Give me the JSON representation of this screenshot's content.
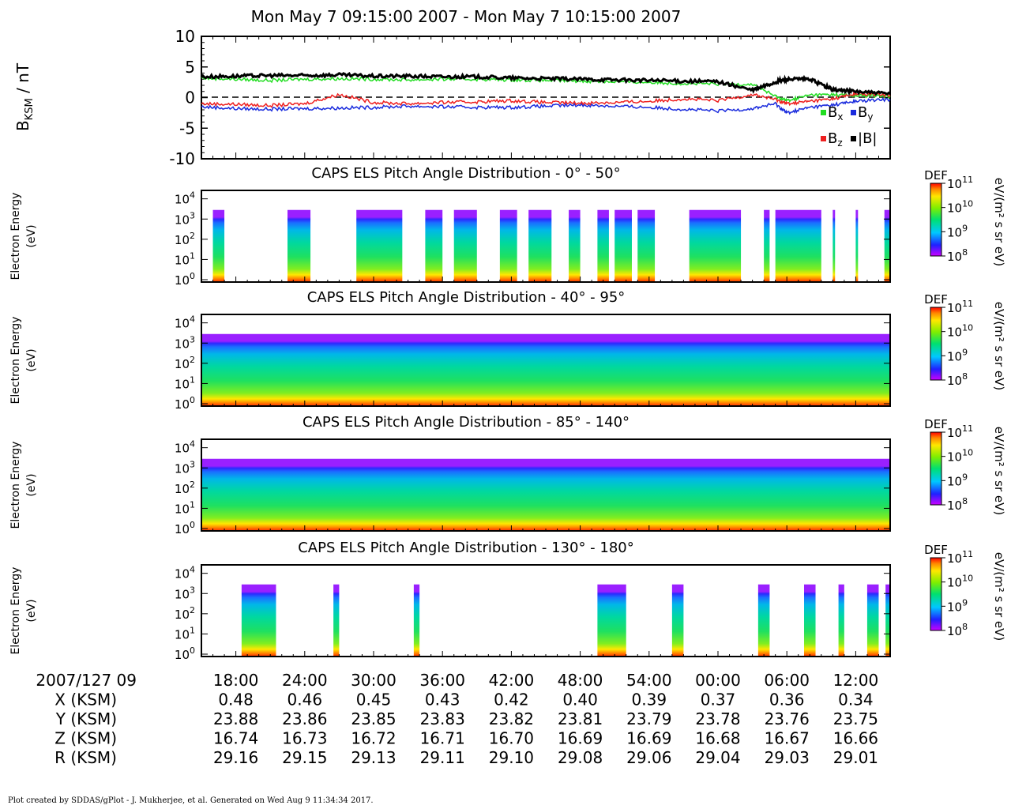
{
  "title": "Mon May 7 09:15:00 2007 - Mon May 7 10:15:00 2007",
  "colors": {
    "bx": "#22dd22",
    "by": "#1a2bdd",
    "bz": "#ee2020",
    "btot": "#000000"
  },
  "mag_panel": {
    "ylabel_main": "B",
    "ylabel_sub": "KSM",
    "ylabel_unit": " / nT",
    "ylim": [
      -10,
      10
    ],
    "yticks": [
      "10",
      "5",
      "0",
      "-5",
      "-10"
    ],
    "zero_line": "dashed"
  },
  "legend": [
    {
      "key": "bx",
      "main": "B",
      "sub": "x"
    },
    {
      "key": "by",
      "main": "B",
      "sub": "y"
    },
    {
      "key": "bz",
      "main": "B",
      "sub": "z"
    },
    {
      "key": "btot",
      "main": "|B|",
      "sub": ""
    }
  ],
  "spectrogram_common": {
    "ylabel_line1": "Electron Energy",
    "ylabel_line2": "(eV)",
    "yticks": [
      {
        "base": "10",
        "exp": "4"
      },
      {
        "base": "10",
        "exp": "3"
      },
      {
        "base": "10",
        "exp": "2"
      },
      {
        "base": "10",
        "exp": "1"
      },
      {
        "base": "10",
        "exp": "0"
      }
    ],
    "colorbar_label": "DEF",
    "colorbar_ticks": [
      {
        "base": "10",
        "exp": "11"
      },
      {
        "base": "10",
        "exp": "10"
      },
      {
        "base": "10",
        "exp": "9"
      },
      {
        "base": "10",
        "exp": "8"
      }
    ],
    "colorbar_unit": "eV/(m² s sr eV)"
  },
  "spectrograms": [
    {
      "title": "CAPS ELS Pitch Angle Distribution - 0° - 50°"
    },
    {
      "title": "CAPS ELS Pitch Angle Distribution - 40° - 95°"
    },
    {
      "title": "CAPS ELS Pitch Angle Distribution - 85° - 140°"
    },
    {
      "title": "CAPS ELS Pitch Angle Distribution - 130° - 180°"
    }
  ],
  "ephemeris": {
    "rows": [
      {
        "label": "2007/127 09",
        "values": [
          "18:00",
          "24:00",
          "30:00",
          "36:00",
          "42:00",
          "48:00",
          "54:00",
          "00:00",
          "06:00",
          "12:00"
        ]
      },
      {
        "label": "X (KSM)",
        "values": [
          "0.48",
          "0.46",
          "0.45",
          "0.43",
          "0.42",
          "0.40",
          "0.39",
          "0.37",
          "0.36",
          "0.34"
        ]
      },
      {
        "label": "Y (KSM)",
        "values": [
          "23.88",
          "23.86",
          "23.85",
          "23.83",
          "23.82",
          "23.81",
          "23.79",
          "23.78",
          "23.76",
          "23.75"
        ]
      },
      {
        "label": "Z (KSM)",
        "values": [
          "16.74",
          "16.73",
          "16.72",
          "16.71",
          "16.70",
          "16.69",
          "16.69",
          "16.68",
          "16.67",
          "16.66"
        ]
      },
      {
        "label": "R (KSM)",
        "values": [
          "29.16",
          "29.15",
          "29.13",
          "29.11",
          "29.10",
          "29.08",
          "29.06",
          "29.04",
          "29.03",
          "29.01"
        ]
      }
    ]
  },
  "footer": "Plot created by SDDAS/gPlot - J. Mukherjee, et al.  Generated on Wed Aug 9 11:34:34 2017.",
  "chart_data": [
    {
      "type": "line",
      "x_unit": "minutes after 09:15 (2007/127)",
      "xlim": [
        0,
        60
      ],
      "ylim": [
        -10,
        10
      ],
      "series": [
        {
          "name": "Bx",
          "x": [
            0,
            3,
            6,
            9,
            12,
            15,
            18,
            21,
            24,
            27,
            30,
            33,
            36,
            39,
            42,
            45,
            48,
            50,
            51,
            53,
            55,
            57,
            60
          ],
          "y": [
            3.2,
            3.0,
            2.8,
            3.0,
            3.1,
            3.0,
            2.9,
            3.0,
            3.0,
            2.9,
            2.8,
            2.7,
            2.6,
            2.5,
            2.3,
            2.2,
            2.2,
            0.2,
            -0.5,
            0.4,
            0.5,
            0.3,
            0.2
          ]
        },
        {
          "name": "By",
          "x": [
            0,
            3,
            6,
            9,
            12,
            15,
            18,
            21,
            24,
            27,
            30,
            33,
            36,
            39,
            42,
            45,
            48,
            50,
            51,
            53,
            55,
            57,
            60
          ],
          "y": [
            -1.5,
            -1.8,
            -1.9,
            -1.8,
            -1.7,
            -1.6,
            -1.4,
            -1.5,
            -1.6,
            -1.6,
            -1.4,
            -1.2,
            -1.4,
            -1.6,
            -1.9,
            -2.2,
            -1.8,
            -1.0,
            -2.5,
            -1.6,
            -1.2,
            -0.6,
            -0.3
          ]
        },
        {
          "name": "Bz",
          "x": [
            0,
            3,
            6,
            9,
            12,
            15,
            18,
            21,
            24,
            27,
            30,
            33,
            36,
            39,
            42,
            45,
            48,
            50,
            51,
            53,
            55,
            57,
            60
          ],
          "y": [
            -1.0,
            -1.1,
            -1.3,
            -1.0,
            0.5,
            -0.8,
            -1.0,
            -0.8,
            -0.7,
            -0.5,
            -0.8,
            -0.9,
            -0.8,
            -0.6,
            -0.2,
            -0.5,
            0.5,
            -0.3,
            -1.0,
            -0.6,
            -0.2,
            0.6,
            0.4
          ]
        },
        {
          "name": "|B|",
          "x": [
            0,
            3,
            6,
            9,
            12,
            15,
            18,
            21,
            24,
            27,
            30,
            33,
            36,
            39,
            42,
            45,
            48,
            50,
            51,
            53,
            55,
            57,
            60
          ],
          "y": [
            3.4,
            3.5,
            3.6,
            3.6,
            3.7,
            3.5,
            3.5,
            3.4,
            3.4,
            3.2,
            3.1,
            3.0,
            2.9,
            2.8,
            2.7,
            2.6,
            1.2,
            2.5,
            3.0,
            3.0,
            1.3,
            1.0,
            0.6
          ]
        }
      ]
    },
    {
      "type": "heatmap",
      "title": "CAPS ELS Pitch Angle Distribution - 0° - 50°",
      "y_scale": "log",
      "ylim": [
        1,
        10000
      ],
      "zlim": [
        100000000.0,
        100000000000.0
      ],
      "z_label": "DEF",
      "x_unit": "minutes after 09:15",
      "coverage_intervals": [
        [
          1,
          2
        ],
        [
          7.5,
          9.5
        ],
        [
          13.5,
          17.5
        ],
        [
          19.5,
          21
        ],
        [
          22,
          24
        ],
        [
          26,
          27.5
        ],
        [
          28.5,
          30.5
        ],
        [
          32,
          33
        ],
        [
          34.5,
          35.5
        ],
        [
          36,
          37.5
        ],
        [
          38,
          39.5
        ],
        [
          42.5,
          47
        ],
        [
          49,
          49.5
        ],
        [
          50,
          54
        ],
        [
          55,
          55.2
        ],
        [
          57,
          57.2
        ],
        [
          59.5,
          60
        ]
      ]
    },
    {
      "type": "heatmap",
      "title": "CAPS ELS Pitch Angle Distribution - 40° - 95°",
      "y_scale": "log",
      "ylim": [
        1,
        10000
      ],
      "zlim": [
        100000000.0,
        100000000000.0
      ],
      "z_label": "DEF",
      "x_unit": "minutes after 09:15",
      "coverage_intervals": [
        [
          0,
          60
        ]
      ]
    },
    {
      "type": "heatmap",
      "title": "CAPS ELS Pitch Angle Distribution - 85° - 140°",
      "y_scale": "log",
      "ylim": [
        1,
        10000
      ],
      "zlim": [
        100000000.0,
        100000000000.0
      ],
      "z_label": "DEF",
      "x_unit": "minutes after 09:15",
      "coverage_intervals": [
        [
          0,
          60
        ]
      ]
    },
    {
      "type": "heatmap",
      "title": "CAPS ELS Pitch Angle Distribution - 130° - 180°",
      "y_scale": "log",
      "ylim": [
        1,
        10000
      ],
      "zlim": [
        100000000.0,
        100000000000.0
      ],
      "z_label": "DEF",
      "x_unit": "minutes after 09:15",
      "coverage_intervals": [
        [
          3.5,
          6.5
        ],
        [
          11.5,
          12
        ],
        [
          18.5,
          19
        ],
        [
          34.5,
          37
        ],
        [
          41,
          42
        ],
        [
          48.5,
          49.5
        ],
        [
          52.5,
          53.5
        ],
        [
          55.5,
          56
        ],
        [
          58,
          59
        ],
        [
          59.6,
          60
        ]
      ]
    }
  ]
}
